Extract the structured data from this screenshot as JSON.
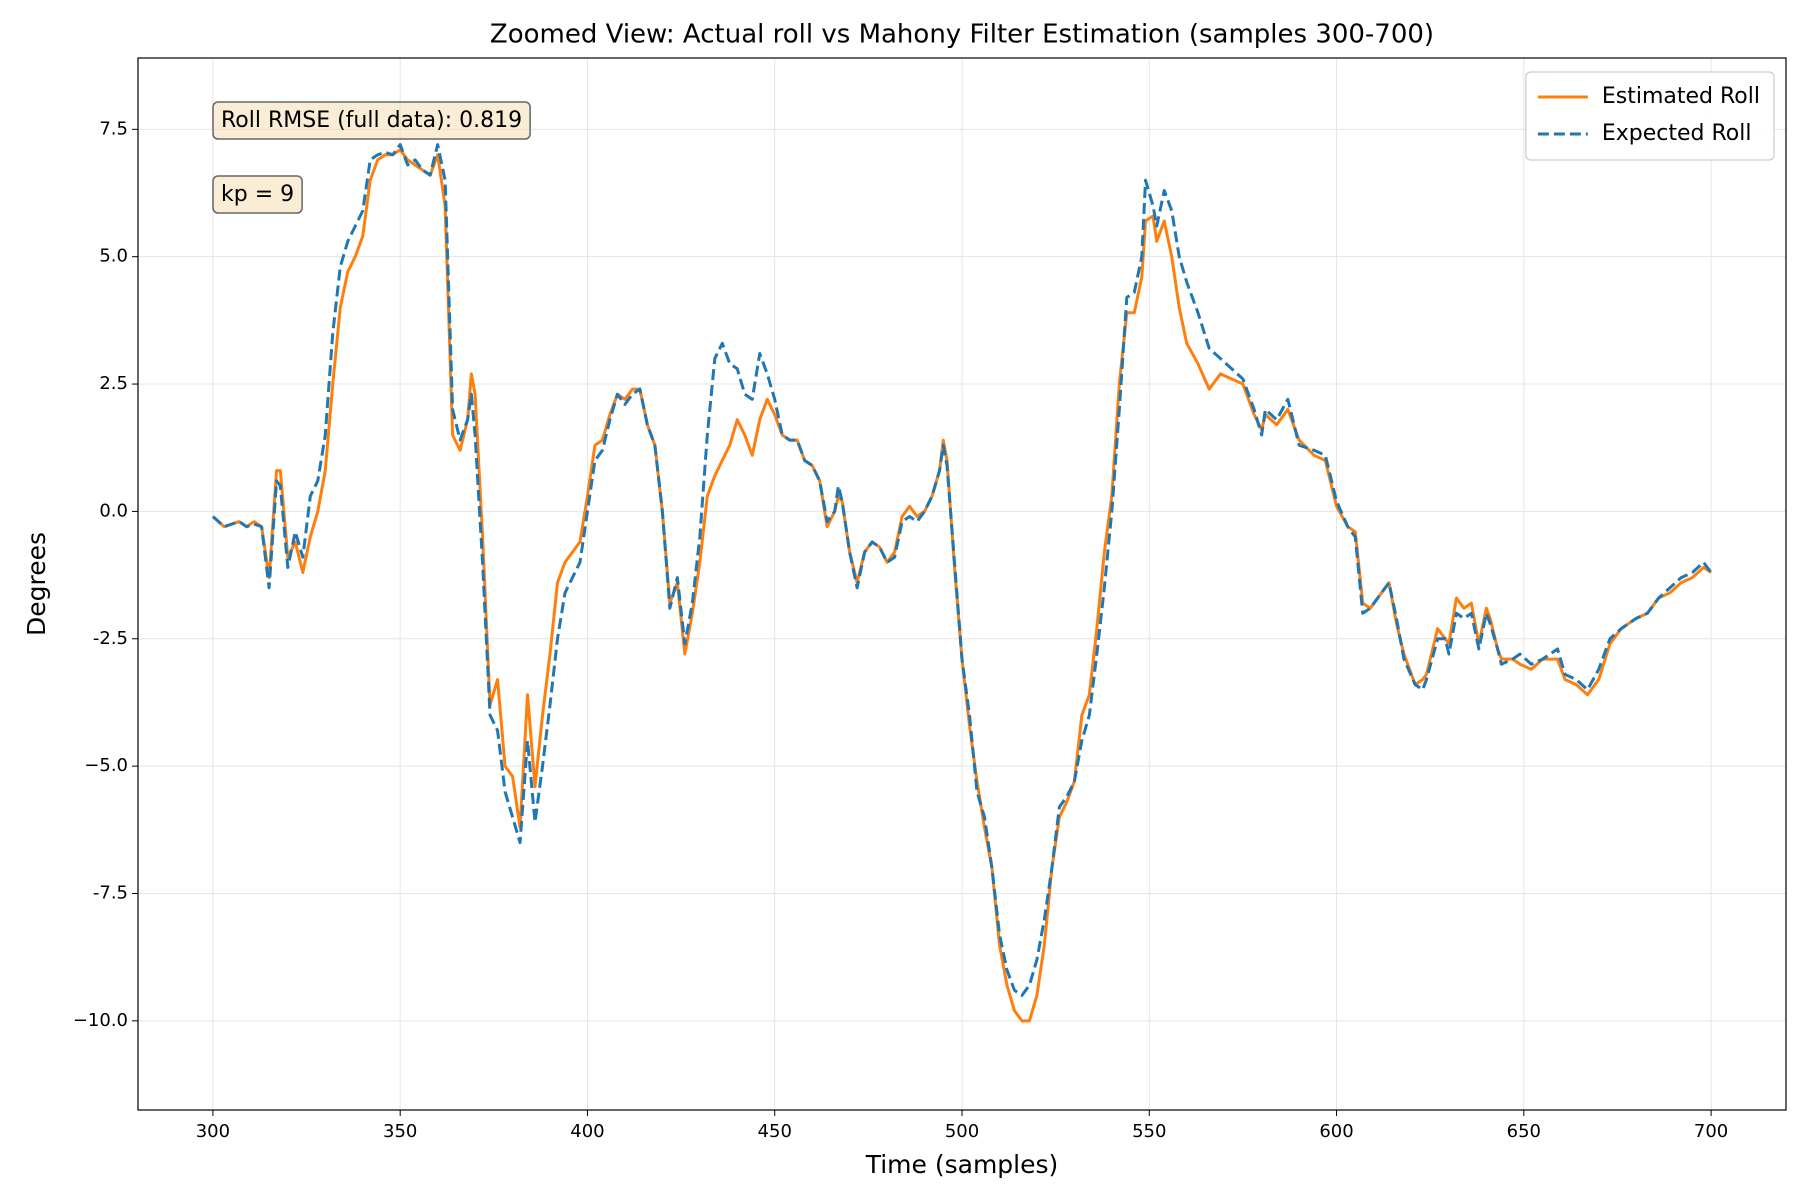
{
  "chart_data": {
    "type": "line",
    "title": "Zoomed View: Actual roll vs Mahony Filter Estimation (samples 300-700)",
    "xlabel": "Time (samples)",
    "ylabel": "Degrees",
    "annotations": [
      "Roll RMSE (full data): 0.819",
      "kp = 9"
    ],
    "x": [
      300,
      303,
      307,
      309,
      311,
      313,
      315,
      317,
      318,
      320,
      322,
      324,
      326,
      328,
      330,
      332,
      334,
      336,
      338,
      340,
      342,
      344,
      346,
      348,
      350,
      352,
      354,
      356,
      358,
      360,
      362,
      364,
      366,
      368,
      369,
      370,
      372,
      374,
      376,
      378,
      380,
      382,
      384,
      386,
      388,
      390,
      392,
      394,
      396,
      398,
      400,
      402,
      404,
      406,
      408,
      410,
      412,
      414,
      416,
      418,
      420,
      422,
      424,
      426,
      428,
      430,
      432,
      434,
      436,
      438,
      440,
      442,
      444,
      446,
      448,
      450,
      452,
      454,
      456,
      458,
      460,
      462,
      464,
      466,
      467,
      468,
      470,
      472,
      474,
      476,
      478,
      480,
      482,
      484,
      486,
      488,
      490,
      492,
      494,
      495,
      496,
      498,
      500,
      502,
      504,
      506,
      508,
      510,
      512,
      514,
      516,
      518,
      520,
      522,
      524,
      526,
      528,
      530,
      532,
      534,
      536,
      538,
      540,
      542,
      544,
      546,
      548,
      549,
      551,
      552,
      554,
      556,
      558,
      560,
      563,
      566,
      569,
      572,
      575,
      578,
      580,
      581,
      584,
      587,
      590,
      594,
      597,
      600,
      603,
      605,
      607,
      609,
      612,
      614,
      616,
      618,
      621,
      623,
      624,
      627,
      629,
      630,
      632,
      634,
      636,
      638,
      640,
      641,
      643,
      644,
      647,
      649,
      652,
      655,
      659,
      661,
      664,
      667,
      670,
      673,
      676,
      680,
      683,
      686,
      689,
      692,
      695,
      698,
      700
    ],
    "series": [
      {
        "name": "Estimated Roll",
        "color": "#ff7f0e",
        "dashed": false,
        "values": [
          -0.1,
          -0.3,
          -0.2,
          -0.3,
          -0.2,
          -0.3,
          -1.3,
          0.8,
          0.8,
          -0.9,
          -0.6,
          -1.2,
          -0.5,
          0.0,
          0.8,
          2.5,
          4.0,
          4.7,
          5.0,
          5.4,
          6.5,
          6.9,
          7.0,
          7.0,
          7.1,
          6.9,
          6.8,
          6.7,
          6.6,
          7.0,
          6.0,
          1.5,
          1.2,
          1.8,
          2.7,
          2.3,
          -0.5,
          -3.8,
          -3.3,
          -5.0,
          -5.2,
          -6.2,
          -3.6,
          -5.4,
          -4.0,
          -2.8,
          -1.4,
          -1.0,
          -0.8,
          -0.6,
          0.3,
          1.3,
          1.4,
          1.9,
          2.3,
          2.2,
          2.4,
          2.4,
          1.7,
          1.3,
          0.0,
          -1.8,
          -1.4,
          -2.8,
          -2.0,
          -1.0,
          0.3,
          0.7,
          1.0,
          1.3,
          1.8,
          1.5,
          1.1,
          1.8,
          2.2,
          1.9,
          1.5,
          1.4,
          1.4,
          1.0,
          0.9,
          0.6,
          -0.3,
          0.0,
          0.3,
          0.2,
          -0.8,
          -1.4,
          -0.8,
          -0.6,
          -0.7,
          -1.0,
          -0.8,
          -0.1,
          0.1,
          -0.1,
          0.0,
          0.3,
          0.8,
          1.4,
          1.0,
          -1.1,
          -2.9,
          -4.2,
          -5.3,
          -6.2,
          -7.0,
          -8.5,
          -9.3,
          -9.8,
          -10.0,
          -10.0,
          -9.5,
          -8.5,
          -7.0,
          -6.0,
          -5.7,
          -5.3,
          -4.0,
          -3.6,
          -2.3,
          -0.8,
          0.3,
          2.5,
          3.9,
          3.9,
          4.6,
          5.7,
          5.8,
          5.3,
          5.7,
          5.0,
          4.0,
          3.3,
          2.9,
          2.4,
          2.7,
          2.6,
          2.5,
          1.9,
          1.6,
          1.9,
          1.7,
          2.0,
          1.4,
          1.1,
          1.0,
          0.1,
          -0.3,
          -0.4,
          -1.8,
          -1.9,
          -1.6,
          -1.4,
          -2.2,
          -2.8,
          -3.4,
          -3.3,
          -3.2,
          -2.3,
          -2.5,
          -2.6,
          -1.7,
          -1.9,
          -1.8,
          -2.6,
          -1.9,
          -2.1,
          -2.7,
          -2.9,
          -2.9,
          -3.0,
          -3.1,
          -2.9,
          -2.9,
          -3.3,
          -3.4,
          -3.6,
          -3.3,
          -2.6,
          -2.3,
          -2.1,
          -2.0,
          -1.7,
          -1.6,
          -1.4,
          -1.3,
          -1.1,
          -1.2
        ]
      },
      {
        "name": "Expected Roll",
        "color": "#1f77b4",
        "dashed": true,
        "values": [
          -0.1,
          -0.3,
          -0.2,
          -0.3,
          -0.25,
          -0.3,
          -1.5,
          0.6,
          0.5,
          -1.1,
          -0.4,
          -0.9,
          0.3,
          0.6,
          1.5,
          3.5,
          4.8,
          5.3,
          5.6,
          5.9,
          6.9,
          7.0,
          7.05,
          7.0,
          7.2,
          6.8,
          6.9,
          6.7,
          6.6,
          7.2,
          6.5,
          2.0,
          1.4,
          1.8,
          2.3,
          1.5,
          -1.0,
          -4.0,
          -4.3,
          -5.5,
          -6.0,
          -6.5,
          -4.5,
          -6.1,
          -5.0,
          -3.8,
          -2.5,
          -1.6,
          -1.3,
          -1.0,
          0.0,
          1.0,
          1.2,
          1.8,
          2.3,
          2.1,
          2.3,
          2.4,
          1.7,
          1.3,
          0.0,
          -1.9,
          -1.3,
          -2.6,
          -1.8,
          -0.5,
          1.5,
          3.0,
          3.3,
          2.9,
          2.8,
          2.3,
          2.2,
          3.1,
          2.7,
          2.2,
          1.5,
          1.4,
          1.4,
          1.0,
          0.9,
          0.6,
          -0.2,
          0.0,
          0.5,
          0.2,
          -0.8,
          -1.5,
          -0.8,
          -0.6,
          -0.7,
          -1.0,
          -0.9,
          -0.2,
          -0.1,
          -0.2,
          0.0,
          0.3,
          0.8,
          1.3,
          0.9,
          -1.0,
          -2.9,
          -4.0,
          -5.5,
          -6.0,
          -7.0,
          -8.3,
          -9.0,
          -9.4,
          -9.5,
          -9.3,
          -8.8,
          -8.0,
          -7.0,
          -5.8,
          -5.6,
          -5.3,
          -4.5,
          -4.0,
          -2.8,
          -1.5,
          0.0,
          2.0,
          4.2,
          4.3,
          5.0,
          6.5,
          6.0,
          5.6,
          6.3,
          5.9,
          5.0,
          4.5,
          3.9,
          3.2,
          3.0,
          2.8,
          2.6,
          2.0,
          1.5,
          2.0,
          1.8,
          2.2,
          1.3,
          1.2,
          1.1,
          0.2,
          -0.3,
          -0.5,
          -2.0,
          -1.9,
          -1.6,
          -1.4,
          -2.1,
          -2.9,
          -3.4,
          -3.5,
          -3.3,
          -2.5,
          -2.5,
          -2.8,
          -2.0,
          -2.1,
          -2.0,
          -2.7,
          -2.0,
          -2.2,
          -2.7,
          -3.0,
          -2.9,
          -2.8,
          -3.0,
          -2.9,
          -2.7,
          -3.2,
          -3.3,
          -3.5,
          -3.1,
          -2.5,
          -2.3,
          -2.1,
          -2.0,
          -1.7,
          -1.5,
          -1.3,
          -1.2,
          -1.0,
          -1.2
        ]
      }
    ],
    "xlim": [
      280,
      720
    ],
    "ylim": [
      -11.75,
      8.9
    ],
    "xticks": [
      300,
      350,
      400,
      450,
      500,
      550,
      600,
      650,
      700
    ],
    "yticks": [
      {
        "value": -10,
        "label": "−10.0"
      },
      -7.5,
      {
        "value": -5,
        "label": "−5.0"
      },
      -2.5,
      {
        "value": 0,
        "label": "0.0"
      },
      2.5,
      {
        "value": 5,
        "label": "5.0"
      },
      7.5
    ],
    "grid": true,
    "legend": "upper right"
  }
}
